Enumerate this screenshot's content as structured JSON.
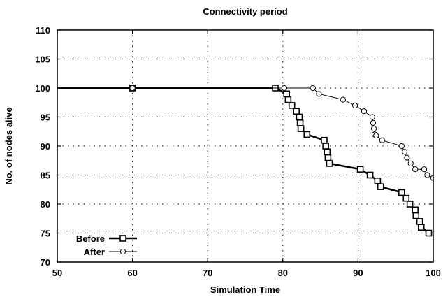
{
  "chart_data": {
    "type": "line",
    "title": "Connectivity period",
    "xlabel": "Simulation Time",
    "ylabel": "No. of nodes alive",
    "xlim": [
      50,
      100
    ],
    "ylim": [
      70,
      110
    ],
    "xticks": [
      "50",
      "60",
      "70",
      "80",
      "90",
      "100"
    ],
    "yticks": [
      "70",
      "75",
      "80",
      "85",
      "90",
      "95",
      "100",
      "105",
      "110"
    ],
    "grid": "dotted",
    "legend_position": "bottom-left",
    "series": [
      {
        "name": "Before",
        "marker": "square",
        "line_weight": "thick",
        "color": "#000000",
        "points": [
          [
            0,
            100
          ],
          [
            60,
            100
          ],
          [
            79,
            100
          ],
          [
            80.5,
            99
          ],
          [
            80.7,
            98
          ],
          [
            81.2,
            97
          ],
          [
            81.8,
            96
          ],
          [
            82.2,
            95
          ],
          [
            82.3,
            94
          ],
          [
            82.4,
            93
          ],
          [
            83.2,
            92
          ],
          [
            85.5,
            91
          ],
          [
            85.7,
            90
          ],
          [
            85.9,
            89
          ],
          [
            86.0,
            88
          ],
          [
            86.2,
            87
          ],
          [
            90.3,
            86
          ],
          [
            91.6,
            85
          ],
          [
            92.6,
            84
          ],
          [
            93.0,
            83
          ],
          [
            95.8,
            82
          ],
          [
            96.4,
            81
          ],
          [
            96.9,
            80
          ],
          [
            97.6,
            79
          ],
          [
            97.7,
            78
          ],
          [
            98.2,
            77
          ],
          [
            98.4,
            76
          ],
          [
            99.4,
            75
          ]
        ]
      },
      {
        "name": "After",
        "marker": "circle",
        "line_weight": "thin",
        "color": "#000000",
        "points": [
          [
            0,
            100
          ],
          [
            60,
            100
          ],
          [
            80.2,
            100
          ],
          [
            84,
            100
          ],
          [
            84.8,
            99
          ],
          [
            88,
            98
          ],
          [
            89.6,
            97
          ],
          [
            90.8,
            96
          ],
          [
            91.9,
            95
          ],
          [
            92.0,
            94
          ],
          [
            92.1,
            93
          ],
          [
            92.2,
            92
          ],
          [
            92.4,
            91.8
          ],
          [
            93.2,
            91
          ],
          [
            95.8,
            90
          ],
          [
            96.2,
            89
          ],
          [
            96.5,
            88
          ],
          [
            97.0,
            87
          ],
          [
            97.6,
            86
          ],
          [
            98.8,
            86
          ],
          [
            99.2,
            85
          ],
          [
            100,
            84.5
          ]
        ]
      }
    ]
  }
}
